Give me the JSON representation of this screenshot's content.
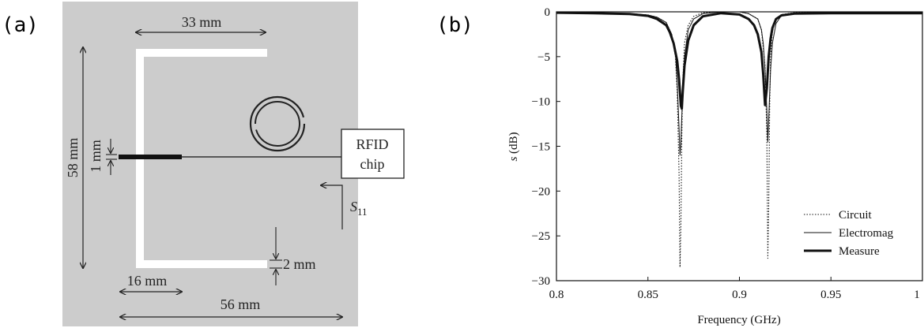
{
  "panel_a": {
    "label": "(a)",
    "dimensions": {
      "top_width": "33 mm",
      "height": "58 mm",
      "feed_width": "1 mm",
      "chip_label_line1": "RFID",
      "chip_label_line2": "chip",
      "port_label": "S",
      "port_sub": "11",
      "strip_width": "2 mm",
      "feed_length": "16 mm",
      "total_width": "56 mm"
    },
    "colors": {
      "background": "#cccccc",
      "conductor": "#ffffff",
      "feed": "#111111"
    }
  },
  "panel_b": {
    "label": "(b)"
  },
  "chart_data": {
    "type": "line",
    "xlabel": "Frequency (GHz)",
    "ylabel_italic": "s",
    "ylabel_rest": " (dB)",
    "xlim": [
      0.8,
      1.0
    ],
    "ylim": [
      -30,
      0
    ],
    "xticks": [
      0.8,
      0.85,
      0.9,
      0.95,
      1.0
    ],
    "xtick_labels": [
      "0.8",
      "0.85",
      "0.9",
      "0.95",
      "1"
    ],
    "yticks": [
      0,
      -5,
      -10,
      -15,
      -20,
      -25,
      -30
    ],
    "ytick_labels": [
      "0",
      "−5",
      "−10",
      "−15",
      "−20",
      "−25",
      "−30"
    ],
    "grid": false,
    "legend_position": "bottom-right",
    "series": [
      {
        "name": "Circuit",
        "style": "dotted",
        "x": [
          0.8,
          0.82,
          0.84,
          0.85,
          0.855,
          0.86,
          0.863,
          0.865,
          0.866,
          0.867,
          0.8675,
          0.868,
          0.8685,
          0.869,
          0.87,
          0.872,
          0.875,
          0.88,
          0.89,
          0.9,
          0.905,
          0.91,
          0.912,
          0.914,
          0.915,
          0.9155,
          0.916,
          0.9165,
          0.917,
          0.918,
          0.92,
          0.923,
          0.93,
          0.95,
          0.97,
          1.0
        ],
        "y": [
          -0.05,
          -0.1,
          -0.2,
          -0.35,
          -0.6,
          -1.2,
          -2.5,
          -5,
          -9,
          -18,
          -28.5,
          -24,
          -14,
          -8,
          -3.5,
          -1.5,
          -0.5,
          -0.1,
          0.0,
          0.0,
          -0.2,
          -0.8,
          -2,
          -6,
          -14,
          -27.5,
          -22,
          -11,
          -5,
          -2.2,
          -0.8,
          -0.3,
          -0.1,
          -0.05,
          -0.02,
          0.0
        ]
      },
      {
        "name": "Electromag",
        "style": "thin",
        "x": [
          0.8,
          0.82,
          0.84,
          0.85,
          0.855,
          0.86,
          0.863,
          0.865,
          0.866,
          0.867,
          0.8675,
          0.868,
          0.869,
          0.87,
          0.872,
          0.875,
          0.88,
          0.89,
          0.9,
          0.905,
          0.91,
          0.912,
          0.913,
          0.914,
          0.915,
          0.9155,
          0.916,
          0.917,
          0.918,
          0.92,
          0.923,
          0.93,
          0.95,
          0.97,
          1.0
        ],
        "y": [
          -0.05,
          -0.1,
          -0.2,
          -0.35,
          -0.6,
          -1.2,
          -2.5,
          -4.5,
          -8,
          -13,
          -16,
          -14.5,
          -9,
          -5,
          -2,
          -0.8,
          -0.2,
          0.0,
          0.0,
          -0.2,
          -0.8,
          -2,
          -3.5,
          -6.5,
          -11,
          -14.5,
          -12,
          -6.5,
          -3.5,
          -1.3,
          -0.4,
          -0.15,
          -0.05,
          -0.02,
          0.0
        ]
      },
      {
        "name": "Measure",
        "style": "thick",
        "x": [
          0.8,
          0.82,
          0.84,
          0.85,
          0.855,
          0.86,
          0.862,
          0.864,
          0.866,
          0.867,
          0.868,
          0.8685,
          0.869,
          0.87,
          0.872,
          0.875,
          0.88,
          0.89,
          0.9,
          0.905,
          0.908,
          0.91,
          0.912,
          0.913,
          0.914,
          0.915,
          0.916,
          0.917,
          0.918,
          0.92,
          0.923,
          0.93,
          0.95,
          0.97,
          1.0
        ],
        "y": [
          -0.1,
          -0.15,
          -0.25,
          -0.45,
          -0.8,
          -1.5,
          -2.3,
          -3.5,
          -5.5,
          -7.5,
          -10.5,
          -10.8,
          -9,
          -6,
          -3.2,
          -1.5,
          -0.5,
          -0.15,
          -0.3,
          -0.8,
          -1.5,
          -2.5,
          -4.5,
          -7,
          -10.4,
          -8.5,
          -5,
          -3,
          -1.8,
          -0.8,
          -0.4,
          -0.2,
          -0.15,
          -0.15,
          -0.15
        ]
      }
    ]
  }
}
